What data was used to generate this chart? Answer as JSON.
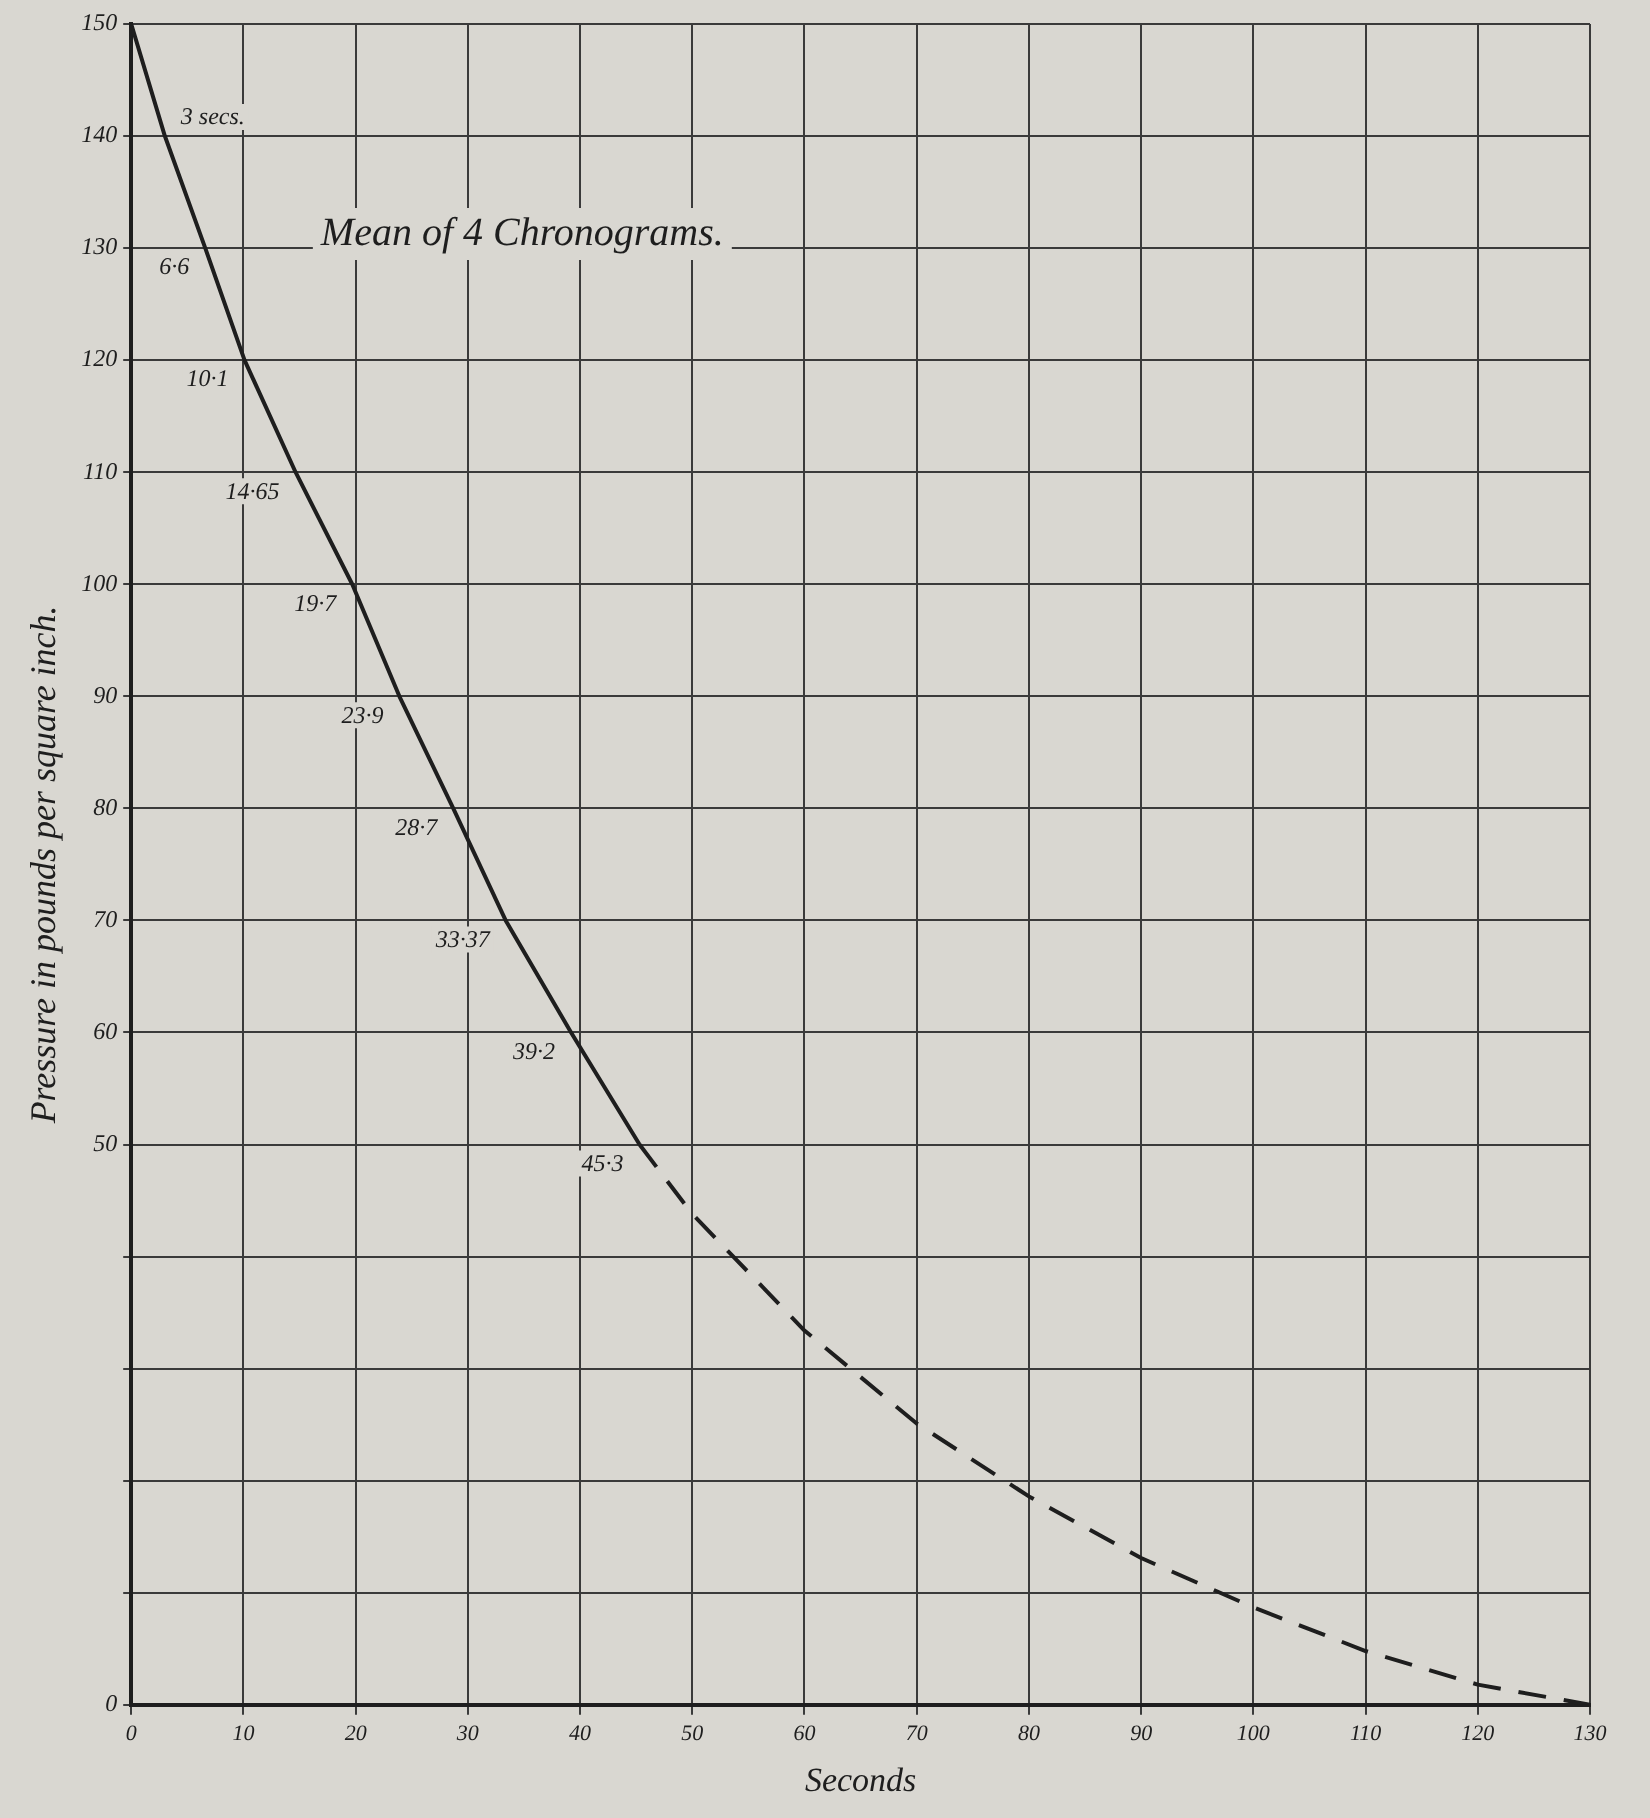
{
  "chart_data": {
    "type": "line",
    "title": "Mean of 4 Chronograms.",
    "xlabel": "Seconds",
    "ylabel": "Pressure in pounds per square inch.",
    "series": [
      {
        "color": "#1e1e1e",
        "line_style": "solid",
        "x": [
          0,
          3,
          6.6,
          10.1,
          14.65,
          19.7,
          23.9,
          28.7,
          33.37,
          39.2,
          45.3
        ],
        "values": [
          150,
          140,
          130,
          120,
          110,
          100,
          90,
          80,
          70,
          60,
          50
        ]
      },
      {
        "color": "#1e1e1e",
        "line_style": "dashed",
        "x": [
          45.3,
          50,
          60,
          70,
          80,
          90,
          100,
          110,
          120,
          130
        ],
        "values": [
          50,
          43.8,
          33.4,
          25.1,
          18.6,
          13.1,
          8.7,
          4.8,
          1.8,
          0
        ]
      }
    ],
    "annotations": [
      {
        "text": "3 secs.",
        "x": 3,
        "y": 140
      },
      {
        "text": "6·6",
        "x": 6.6,
        "y": 130
      },
      {
        "text": "10·1",
        "x": 10.1,
        "y": 120
      },
      {
        "text": "14·65",
        "x": 14.65,
        "y": 110
      },
      {
        "text": "19·7",
        "x": 19.7,
        "y": 100
      },
      {
        "text": "23·9",
        "x": 23.9,
        "y": 90
      },
      {
        "text": "28·7",
        "x": 28.7,
        "y": 80
      },
      {
        "text": "33·37",
        "x": 33.37,
        "y": 70
      },
      {
        "text": "39·2",
        "x": 39.2,
        "y": 60
      },
      {
        "text": "45·3",
        "x": 45.3,
        "y": 50
      }
    ],
    "xlim": [
      0,
      130
    ],
    "xticks": [
      0,
      10,
      20,
      30,
      40,
      50,
      60,
      70,
      80,
      90,
      100,
      110,
      120,
      130
    ],
    "ylim": [
      0,
      150
    ],
    "yticks": [
      0,
      {
        "value": 10,
        "label": null
      },
      {
        "value": 20,
        "label": null
      },
      {
        "value": 30,
        "label": null
      },
      {
        "value": 40,
        "label": null
      },
      50,
      60,
      70,
      80,
      90,
      100,
      110,
      120,
      130,
      140,
      150
    ],
    "grid": true,
    "legend": false,
    "marker": "none"
  }
}
